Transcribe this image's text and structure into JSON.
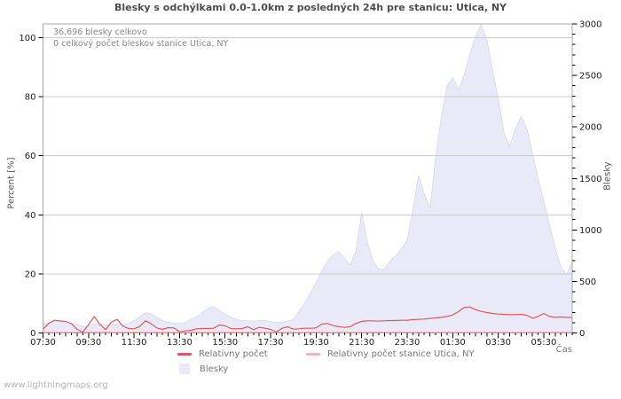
{
  "header": {
    "title": "Blesky s odchýlkami 0.0-1.0km z posledných 24h pre stanicu: Utica, NY"
  },
  "annotations": {
    "total": "36,696 blesky celkovo",
    "station_total": "0 celkový počet bleskov stanice Utica, NY"
  },
  "legend": {
    "relative": "Relativny počet",
    "relative_station": "Relativny počet stanice Utica, NY",
    "blesky": "Blesky"
  },
  "axes": {
    "left": "Percent [%]",
    "right": "Blesky",
    "x": "Čas"
  },
  "watermark": "www.lightningmaps.org",
  "colors": {
    "relative_line": "#dc5a5a",
    "relative_station_line": "#f2b4b4",
    "blesky_fill": "#e9e9f8",
    "blesky_edge": "#d7d6f0",
    "grid": "#cccccc",
    "frame": "#a8a8a8",
    "tick": "#000000",
    "tick_label": "#1a1a1a"
  },
  "chart_data": {
    "type": "area",
    "title": "Blesky s odchýlkami 0.0-1.0km z posledných 24h pre stanicu: Utica, NY",
    "x": [
      "07:30",
      "07:45",
      "08:00",
      "08:15",
      "08:30",
      "08:45",
      "09:00",
      "09:15",
      "09:30",
      "09:45",
      "10:00",
      "10:15",
      "10:30",
      "10:45",
      "11:00",
      "11:15",
      "11:30",
      "11:45",
      "12:00",
      "12:15",
      "12:30",
      "12:45",
      "13:00",
      "13:15",
      "13:30",
      "13:45",
      "14:00",
      "14:15",
      "14:30",
      "14:45",
      "15:00",
      "15:15",
      "15:30",
      "15:45",
      "16:00",
      "16:15",
      "16:30",
      "16:45",
      "17:00",
      "17:15",
      "17:30",
      "17:45",
      "18:00",
      "18:15",
      "18:30",
      "18:45",
      "19:00",
      "19:15",
      "19:30",
      "19:45",
      "20:00",
      "20:15",
      "20:30",
      "20:45",
      "21:00",
      "21:15",
      "21:30",
      "21:45",
      "22:00",
      "22:15",
      "22:30",
      "22:45",
      "23:00",
      "23:15",
      "23:30",
      "23:45",
      "00:00",
      "00:15",
      "00:30",
      "00:45",
      "01:00",
      "01:15",
      "01:30",
      "01:45",
      "02:00",
      "02:15",
      "02:30",
      "02:45",
      "03:00",
      "03:15",
      "03:30",
      "03:45",
      "04:00",
      "04:15",
      "04:30",
      "04:45",
      "05:00",
      "05:15",
      "05:30",
      "05:45",
      "06:00",
      "06:15",
      "06:30",
      "06:45"
    ],
    "series": [
      {
        "name": "Blesky",
        "kind": "area",
        "axis": "right",
        "color": "#e9e9f8",
        "values": [
          85,
          95,
          115,
          110,
          100,
          95,
          85,
          60,
          65,
          90,
          90,
          80,
          80,
          85,
          80,
          90,
          120,
          160,
          195,
          185,
          150,
          120,
          105,
          95,
          90,
          100,
          135,
          155,
          200,
          240,
          255,
          215,
          180,
          155,
          130,
          120,
          120,
          115,
          120,
          125,
          110,
          100,
          105,
          115,
          130,
          210,
          290,
          390,
          490,
          600,
          700,
          760,
          790,
          720,
          660,
          800,
          1170,
          880,
          700,
          620,
          620,
          700,
          750,
          820,
          900,
          1200,
          1530,
          1350,
          1210,
          1700,
          2100,
          2400,
          2480,
          2360,
          2500,
          2700,
          2880,
          2990,
          2850,
          2550,
          2280,
          1950,
          1810,
          1980,
          2100,
          1990,
          1750,
          1500,
          1280,
          1050,
          830,
          640,
          570,
          690
        ]
      },
      {
        "name": "Relativny počet",
        "kind": "line",
        "axis": "left",
        "color": "#dc5a5a",
        "values": [
          1.3,
          3.2,
          4.3,
          4.1,
          3.9,
          3.1,
          1.2,
          0.3,
          2.8,
          5.6,
          2.9,
          1.1,
          3.6,
          4.6,
          2.4,
          1.5,
          1.4,
          2.2,
          4.1,
          3.1,
          1.7,
          1.2,
          1.8,
          1.7,
          0.4,
          0.7,
          0.9,
          1.4,
          1.5,
          1.5,
          1.6,
          2.7,
          2.4,
          1.5,
          1.4,
          1.5,
          2.1,
          1.1,
          1.9,
          1.6,
          1.2,
          0.3,
          1.6,
          2.1,
          1.3,
          1.4,
          1.6,
          1.6,
          1.7,
          3.0,
          3.2,
          2.5,
          2.1,
          1.9,
          2.1,
          3.2,
          3.9,
          4.1,
          4.1,
          4.0,
          4.1,
          4.2,
          4.2,
          4.3,
          4.3,
          4.5,
          4.6,
          4.7,
          4.9,
          5.1,
          5.3,
          5.6,
          6.1,
          7.2,
          8.6,
          8.8,
          7.9,
          7.3,
          6.9,
          6.6,
          6.4,
          6.3,
          6.2,
          6.2,
          6.3,
          6.0,
          5.0,
          5.6,
          6.6,
          5.6,
          5.3,
          5.4,
          5.3,
          5.2
        ]
      },
      {
        "name": "Relativny počet stanice Utica, NY",
        "kind": "line",
        "axis": "left",
        "color": "#f2b4b4",
        "values": [
          0,
          0,
          0,
          0,
          0,
          0,
          0,
          0,
          0,
          0,
          0,
          0,
          0,
          0,
          0,
          0,
          0,
          0,
          0,
          0,
          0,
          0,
          0,
          0,
          0,
          0,
          0,
          0,
          0,
          0,
          0,
          0,
          0,
          0,
          0,
          0,
          0,
          0,
          0,
          0,
          0,
          0,
          0,
          0,
          0,
          0,
          0,
          0,
          0,
          0,
          0,
          0,
          0,
          0,
          0,
          0,
          0,
          0,
          0,
          0,
          0,
          0,
          0,
          0,
          0,
          0,
          0,
          0,
          0,
          0,
          0,
          0,
          0,
          0,
          0,
          0,
          0,
          0,
          0,
          0,
          0,
          0,
          0,
          0,
          0,
          0,
          0,
          0,
          0,
          0,
          0,
          0,
          0,
          0
        ]
      }
    ],
    "left_axis": {
      "label": "Percent [%]",
      "min": 0,
      "max": 100,
      "ticks": [
        0,
        20,
        40,
        60,
        80,
        100
      ]
    },
    "right_axis": {
      "label": "Blesky",
      "min": 0,
      "max": 3000,
      "ticks": [
        0,
        500,
        1000,
        1500,
        2000,
        2500,
        3000
      ],
      "minor_step": 100
    },
    "x_axis": {
      "label": "Čas",
      "tick_labels": [
        "07:30",
        "09:30",
        "11:30",
        "13:30",
        "15:30",
        "17:30",
        "19:30",
        "21:30",
        "23:30",
        "01:30",
        "03:30",
        "05:30"
      ],
      "minor_tick_minutes": 15
    },
    "grid": "horizontal",
    "legend_position": "bottom"
  }
}
